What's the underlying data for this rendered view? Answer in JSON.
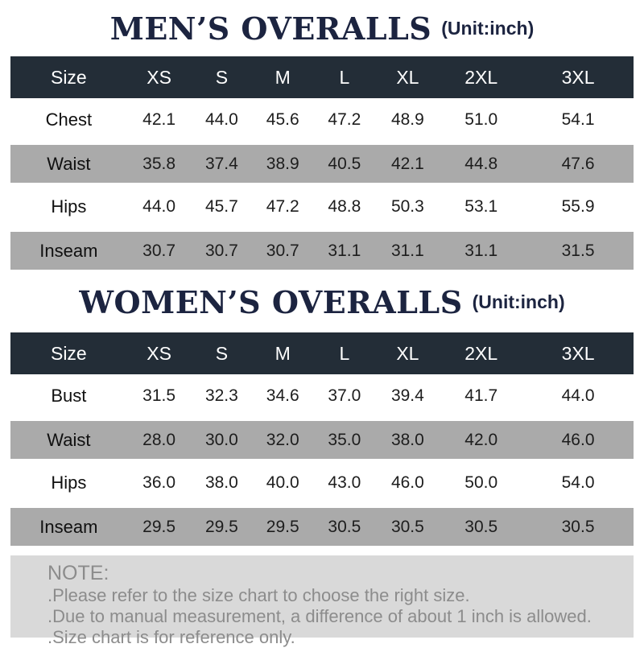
{
  "colors": {
    "title_navy": "#1c2440",
    "header_bg": "#232d37",
    "header_text": "#ffffff",
    "row_alt_bg": "#aaaaaa",
    "body_text": "#1d1d1d",
    "note_bg": "#d9d9d9",
    "note_text": "#8c8c8c"
  },
  "men": {
    "title": "MEN’S OVERALLS",
    "unit": "(Unit:inch)",
    "columns": [
      "Size",
      "XS",
      "S",
      "M",
      "L",
      "XL",
      "2XL",
      "3XL"
    ],
    "rows": [
      {
        "label": "Chest",
        "values": [
          "42.1",
          "44.0",
          "45.6",
          "47.2",
          "48.9",
          "51.0",
          "54.1"
        ]
      },
      {
        "label": "Waist",
        "values": [
          "35.8",
          "37.4",
          "38.9",
          "40.5",
          "42.1",
          "44.8",
          "47.6"
        ]
      },
      {
        "label": "Hips",
        "values": [
          "44.0",
          "45.7",
          "47.2",
          "48.8",
          "50.3",
          "53.1",
          "55.9"
        ]
      },
      {
        "label": "Inseam",
        "values": [
          "30.7",
          "30.7",
          "30.7",
          "31.1",
          "31.1",
          "31.1",
          "31.5"
        ]
      }
    ]
  },
  "women": {
    "title": "WOMEN’S OVERALLS",
    "unit": "(Unit:inch)",
    "columns": [
      "Size",
      "XS",
      "S",
      "M",
      "L",
      "XL",
      "2XL",
      "3XL"
    ],
    "rows": [
      {
        "label": "Bust",
        "values": [
          "31.5",
          "32.3",
          "34.6",
          "37.0",
          "39.4",
          "41.7",
          "44.0"
        ]
      },
      {
        "label": "Waist",
        "values": [
          "28.0",
          "30.0",
          "32.0",
          "35.0",
          "38.0",
          "42.0",
          "46.0"
        ]
      },
      {
        "label": "Hips",
        "values": [
          "36.0",
          "38.0",
          "40.0",
          "43.0",
          "46.0",
          "50.0",
          "54.0"
        ]
      },
      {
        "label": "Inseam",
        "values": [
          "29.5",
          "29.5",
          "29.5",
          "30.5",
          "30.5",
          "30.5",
          "30.5"
        ]
      }
    ]
  },
  "note": {
    "heading": "NOTE:",
    "lines": [
      ".Please refer to the size chart to choose the right size.",
      ".Due to manual measurement, a difference of about 1 inch is allowed.",
      ".Size chart is for reference only."
    ]
  },
  "chart_data": [
    {
      "type": "table",
      "title": "MEN'S OVERALLS",
      "unit": "inch",
      "columns": [
        "XS",
        "S",
        "M",
        "L",
        "XL",
        "2XL",
        "3XL"
      ],
      "rows": [
        {
          "label": "Chest",
          "values": [
            42.1,
            44.0,
            45.6,
            47.2,
            48.9,
            51.0,
            54.1
          ]
        },
        {
          "label": "Waist",
          "values": [
            35.8,
            37.4,
            38.9,
            40.5,
            42.1,
            44.8,
            47.6
          ]
        },
        {
          "label": "Hips",
          "values": [
            44.0,
            45.7,
            47.2,
            48.8,
            50.3,
            53.1,
            55.9
          ]
        },
        {
          "label": "Inseam",
          "values": [
            30.7,
            30.7,
            30.7,
            31.1,
            31.1,
            31.1,
            31.5
          ]
        }
      ]
    },
    {
      "type": "table",
      "title": "WOMEN'S OVERALLS",
      "unit": "inch",
      "columns": [
        "XS",
        "S",
        "M",
        "L",
        "XL",
        "2XL",
        "3XL"
      ],
      "rows": [
        {
          "label": "Bust",
          "values": [
            31.5,
            32.3,
            34.6,
            37.0,
            39.4,
            41.7,
            44.0
          ]
        },
        {
          "label": "Waist",
          "values": [
            28.0,
            30.0,
            32.0,
            35.0,
            38.0,
            42.0,
            46.0
          ]
        },
        {
          "label": "Hips",
          "values": [
            36.0,
            38.0,
            40.0,
            43.0,
            46.0,
            50.0,
            54.0
          ]
        },
        {
          "label": "Inseam",
          "values": [
            29.5,
            29.5,
            29.5,
            30.5,
            30.5,
            30.5,
            30.5
          ]
        }
      ]
    }
  ]
}
